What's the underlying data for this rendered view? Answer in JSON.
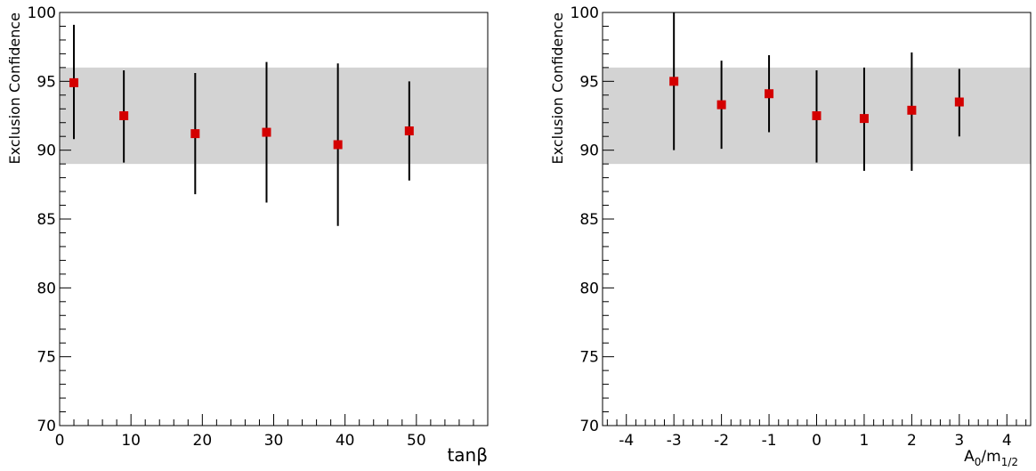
{
  "chart_data": [
    {
      "type": "scatter",
      "title": "",
      "xlabel": "tanβ",
      "ylabel": "Exclusion Confidence",
      "xlim": [
        0,
        60
      ],
      "ylim": [
        70,
        100
      ],
      "x_ticks": [
        "0",
        "10",
        "20",
        "30",
        "40",
        "50"
      ],
      "y_ticks": [
        "70",
        "75",
        "80",
        "85",
        "90",
        "95",
        "100"
      ],
      "band": [
        89,
        96
      ],
      "band_color": "#d3d3d3",
      "marker_color": "#d40000",
      "grid": false,
      "points": [
        {
          "x": 2,
          "y": 94.9,
          "low": 90.8,
          "high": 99.1
        },
        {
          "x": 9,
          "y": 92.5,
          "low": 89.1,
          "high": 95.8
        },
        {
          "x": 19,
          "y": 91.2,
          "low": 86.8,
          "high": 95.6
        },
        {
          "x": 29,
          "y": 91.3,
          "low": 86.2,
          "high": 96.4
        },
        {
          "x": 39,
          "y": 90.4,
          "low": 84.5,
          "high": 96.3
        },
        {
          "x": 49,
          "y": 91.4,
          "low": 87.8,
          "high": 95.0
        }
      ]
    },
    {
      "type": "scatter",
      "title": "",
      "xlabel": "A0/m1/2",
      "xlabel_parts": {
        "base1": "A",
        "sub1": "0",
        "mid": "/m",
        "sub2": "1/2"
      },
      "ylabel": "Exclusion Confidence",
      "xlim": [
        -4.5,
        4.5
      ],
      "ylim": [
        70,
        100
      ],
      "x_ticks": [
        "-4",
        "-3",
        "-2",
        "-1",
        "0",
        "1",
        "2",
        "3",
        "4"
      ],
      "y_ticks": [
        "70",
        "75",
        "80",
        "85",
        "90",
        "95",
        "100"
      ],
      "band": [
        89,
        96
      ],
      "band_color": "#d3d3d3",
      "marker_color": "#d40000",
      "grid": false,
      "points": [
        {
          "x": -3,
          "y": 95.0,
          "low": 90.0,
          "high": 100.0
        },
        {
          "x": -2,
          "y": 93.3,
          "low": 90.1,
          "high": 96.5
        },
        {
          "x": -1,
          "y": 94.1,
          "low": 91.3,
          "high": 96.9
        },
        {
          "x": 0,
          "y": 92.5,
          "low": 89.1,
          "high": 95.8
        },
        {
          "x": 1,
          "y": 92.3,
          "low": 88.5,
          "high": 96.0
        },
        {
          "x": 2,
          "y": 92.9,
          "low": 88.5,
          "high": 97.1
        },
        {
          "x": 3,
          "y": 93.5,
          "low": 91.0,
          "high": 95.9
        }
      ]
    }
  ]
}
